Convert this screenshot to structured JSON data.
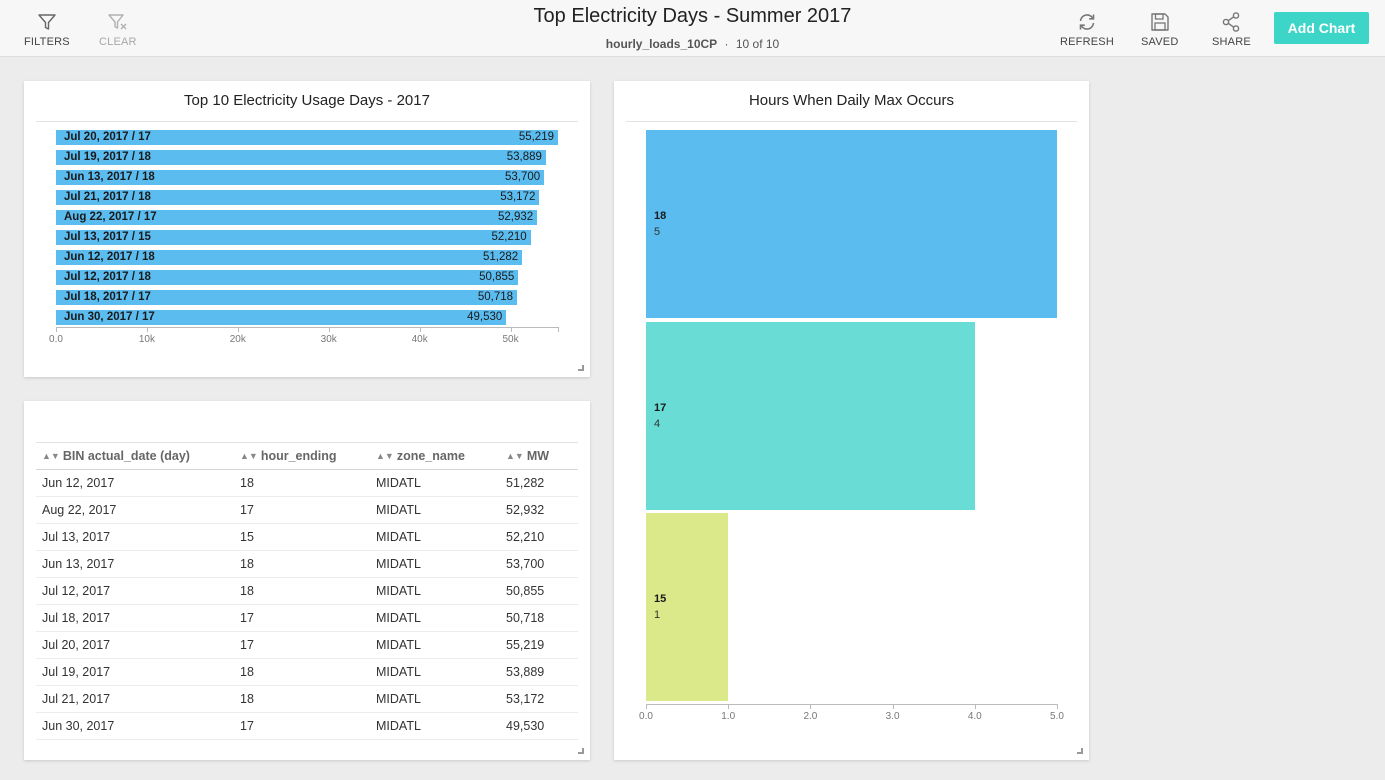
{
  "header": {
    "title": "Top Electricity Days - Summer 2017",
    "dataset": "hourly_loads_10CP",
    "separator": "·",
    "count": "10 of 10",
    "filters_label": "FILTERS",
    "clear_label": "CLEAR",
    "refresh_label": "REFRESH",
    "saved_label": "SAVED",
    "share_label": "SHARE",
    "add_chart_label": "Add Chart"
  },
  "icons": {
    "filters": "funnel-icon",
    "clear": "funnel-clear-icon",
    "refresh": "refresh-icon",
    "saved": "floppy-disk-icon",
    "share": "share-icon"
  },
  "colors": {
    "accent": "#3dd5c8",
    "bar": "#5bbcf0",
    "tile_18": "#5bbcf0",
    "tile_17": "#69ddd5",
    "tile_15": "#dce98b"
  },
  "bar_panel": {
    "title": "Top 10 Electricity Usage Days - 2017"
  },
  "table_panel": {
    "title": "",
    "columns": [
      "BIN actual_date (day)",
      "hour_ending",
      "zone_name",
      "MW"
    ],
    "rows": [
      [
        "Jun 12, 2017",
        "18",
        "MIDATL",
        "51,282"
      ],
      [
        "Aug 22, 2017",
        "17",
        "MIDATL",
        "52,932"
      ],
      [
        "Jul 13, 2017",
        "15",
        "MIDATL",
        "52,210"
      ],
      [
        "Jun 13, 2017",
        "18",
        "MIDATL",
        "53,700"
      ],
      [
        "Jul 12, 2017",
        "18",
        "MIDATL",
        "50,855"
      ],
      [
        "Jul 18, 2017",
        "17",
        "MIDATL",
        "50,718"
      ],
      [
        "Jul 20, 2017",
        "17",
        "MIDATL",
        "55,219"
      ],
      [
        "Jul 19, 2017",
        "18",
        "MIDATL",
        "53,889"
      ],
      [
        "Jul 21, 2017",
        "18",
        "MIDATL",
        "53,172"
      ],
      [
        "Jun 30, 2017",
        "17",
        "MIDATL",
        "49,530"
      ]
    ]
  },
  "treemap_panel": {
    "title": "Hours When Daily Max Occurs"
  },
  "chart_data": [
    {
      "type": "bar",
      "orientation": "horizontal",
      "title": "Top 10 Electricity Usage Days - 2017",
      "categories": [
        "Jul 20, 2017 / 17",
        "Jul 19, 2017 / 18",
        "Jun 13, 2017 / 18",
        "Jul 21, 2017 / 18",
        "Aug 22, 2017 / 17",
        "Jul 13, 2017 / 15",
        "Jun 12, 2017 / 18",
        "Jul 12, 2017 / 18",
        "Jul 18, 2017 / 17",
        "Jun 30, 2017 / 17"
      ],
      "values": [
        55219,
        53889,
        53700,
        53172,
        52932,
        52210,
        51282,
        50855,
        50718,
        49530
      ],
      "value_labels": [
        "55,219",
        "53,889",
        "53,700",
        "53,172",
        "52,932",
        "52,210",
        "51,282",
        "50,855",
        "50,718",
        "49,530"
      ],
      "xlim": [
        0,
        55219
      ],
      "ticks": [
        0,
        10000,
        20000,
        30000,
        40000,
        50000
      ],
      "tick_labels": [
        "0.0",
        "10k",
        "20k",
        "30k",
        "40k",
        "50k"
      ],
      "grid": false,
      "legend": "none"
    },
    {
      "type": "bar",
      "orientation": "horizontal",
      "title": "Hours When Daily Max Occurs",
      "categories": [
        "18",
        "17",
        "15"
      ],
      "values": [
        5,
        4,
        1
      ],
      "value_labels": [
        "5",
        "4",
        "1"
      ],
      "xlim": [
        0,
        5
      ],
      "ticks": [
        0,
        1,
        2,
        3,
        4,
        5
      ],
      "tick_labels": [
        "0.0",
        "1.0",
        "2.0",
        "3.0",
        "4.0",
        "5.0"
      ],
      "grid": false,
      "legend": "none"
    }
  ]
}
